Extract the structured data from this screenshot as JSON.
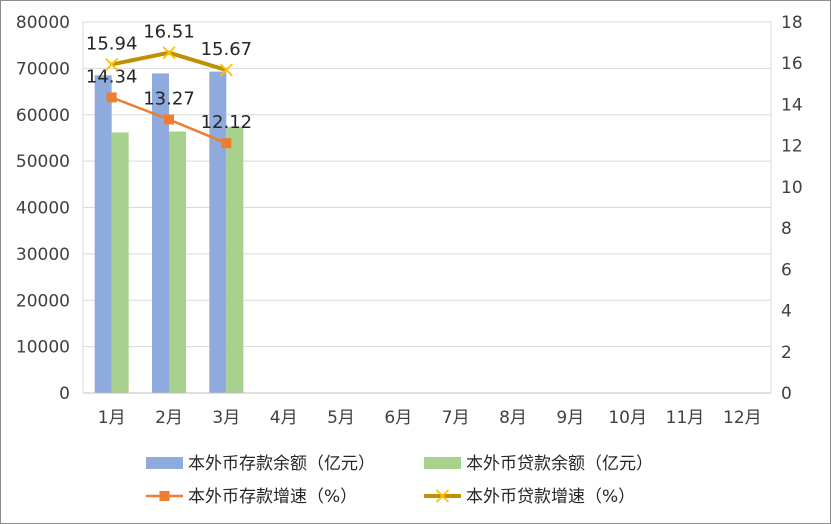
{
  "chart_data": {
    "type": "bar+line",
    "categories": [
      "1月",
      "2月",
      "3月",
      "4月",
      "5月",
      "6月",
      "7月",
      "8月",
      "9月",
      "10月",
      "11月",
      "12月"
    ],
    "y_left": {
      "min": 0,
      "max": 80000,
      "step": 10000,
      "ticks": [
        "0",
        "10000",
        "20000",
        "30000",
        "40000",
        "50000",
        "60000",
        "70000",
        "80000"
      ]
    },
    "y_right": {
      "min": 0,
      "max": 18,
      "step": 2,
      "ticks": [
        "0",
        "2",
        "4",
        "6",
        "8",
        "10",
        "12",
        "14",
        "16",
        "18"
      ]
    },
    "grid": true,
    "legend_position": "bottom",
    "series": [
      {
        "name": "本外币存款余额（亿元）",
        "type": "bar",
        "axis": "left",
        "color": "#8faadc",
        "values": [
          68500,
          68900,
          69300,
          null,
          null,
          null,
          null,
          null,
          null,
          null,
          null,
          null
        ]
      },
      {
        "name": "本外币贷款余额（亿元）",
        "type": "bar",
        "axis": "left",
        "color": "#a9d18e",
        "values": [
          56200,
          56400,
          57400,
          null,
          null,
          null,
          null,
          null,
          null,
          null,
          null,
          null
        ]
      },
      {
        "name": "本外币存款增速（%）",
        "type": "line",
        "axis": "right",
        "color": "#ed7d31",
        "marker": "square",
        "values": [
          14.34,
          13.27,
          12.12,
          null,
          null,
          null,
          null,
          null,
          null,
          null,
          null,
          null
        ],
        "labels": [
          "14.34",
          "13.27",
          "12.12"
        ]
      },
      {
        "name": "本外币贷款增速（%）",
        "type": "line",
        "axis": "right",
        "color": "#bf9000",
        "marker": "x",
        "values": [
          15.94,
          16.51,
          15.67,
          null,
          null,
          null,
          null,
          null,
          null,
          null,
          null,
          null
        ],
        "labels": [
          "15.94",
          "16.51",
          "15.67"
        ]
      }
    ]
  }
}
